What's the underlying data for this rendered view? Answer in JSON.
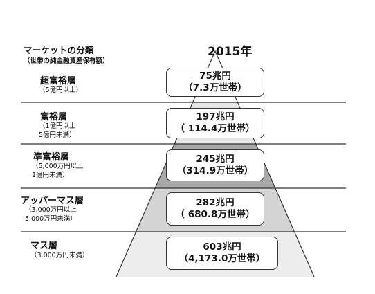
{
  "header": {
    "title": "マーケットの分類",
    "subtitle": "（世帯の純金融資産保有額）",
    "year": "2015年"
  },
  "tiers": [
    {
      "name": "超富裕層",
      "desc": "（5億円以上）",
      "amount": "75兆円",
      "households": "（7.3万世帯）",
      "fill": "#ffffff"
    },
    {
      "name": "富裕層",
      "desc": "（1億円以上\n5億円未満）",
      "amount": "197兆円",
      "households": "（ 114.4万世帯）",
      "fill": "#e6e6e6"
    },
    {
      "name": "準富裕層",
      "desc": "（5,000万円以上\n1億円未満）",
      "amount": "245兆円",
      "households": "（314.9万世帯）",
      "fill": "#a8a8a8"
    },
    {
      "name": "アッパーマス層",
      "desc": "（3,000万円以上\n5,000万円未満）",
      "amount": "282兆円",
      "households": "（ 680.8万世帯）",
      "fill": "#d4d4d4"
    },
    {
      "name": "マス層",
      "desc": "（3,000万円未満）",
      "amount": "603兆円",
      "households": "（4,173.0万世帯）",
      "fill": "#ededed"
    }
  ]
}
